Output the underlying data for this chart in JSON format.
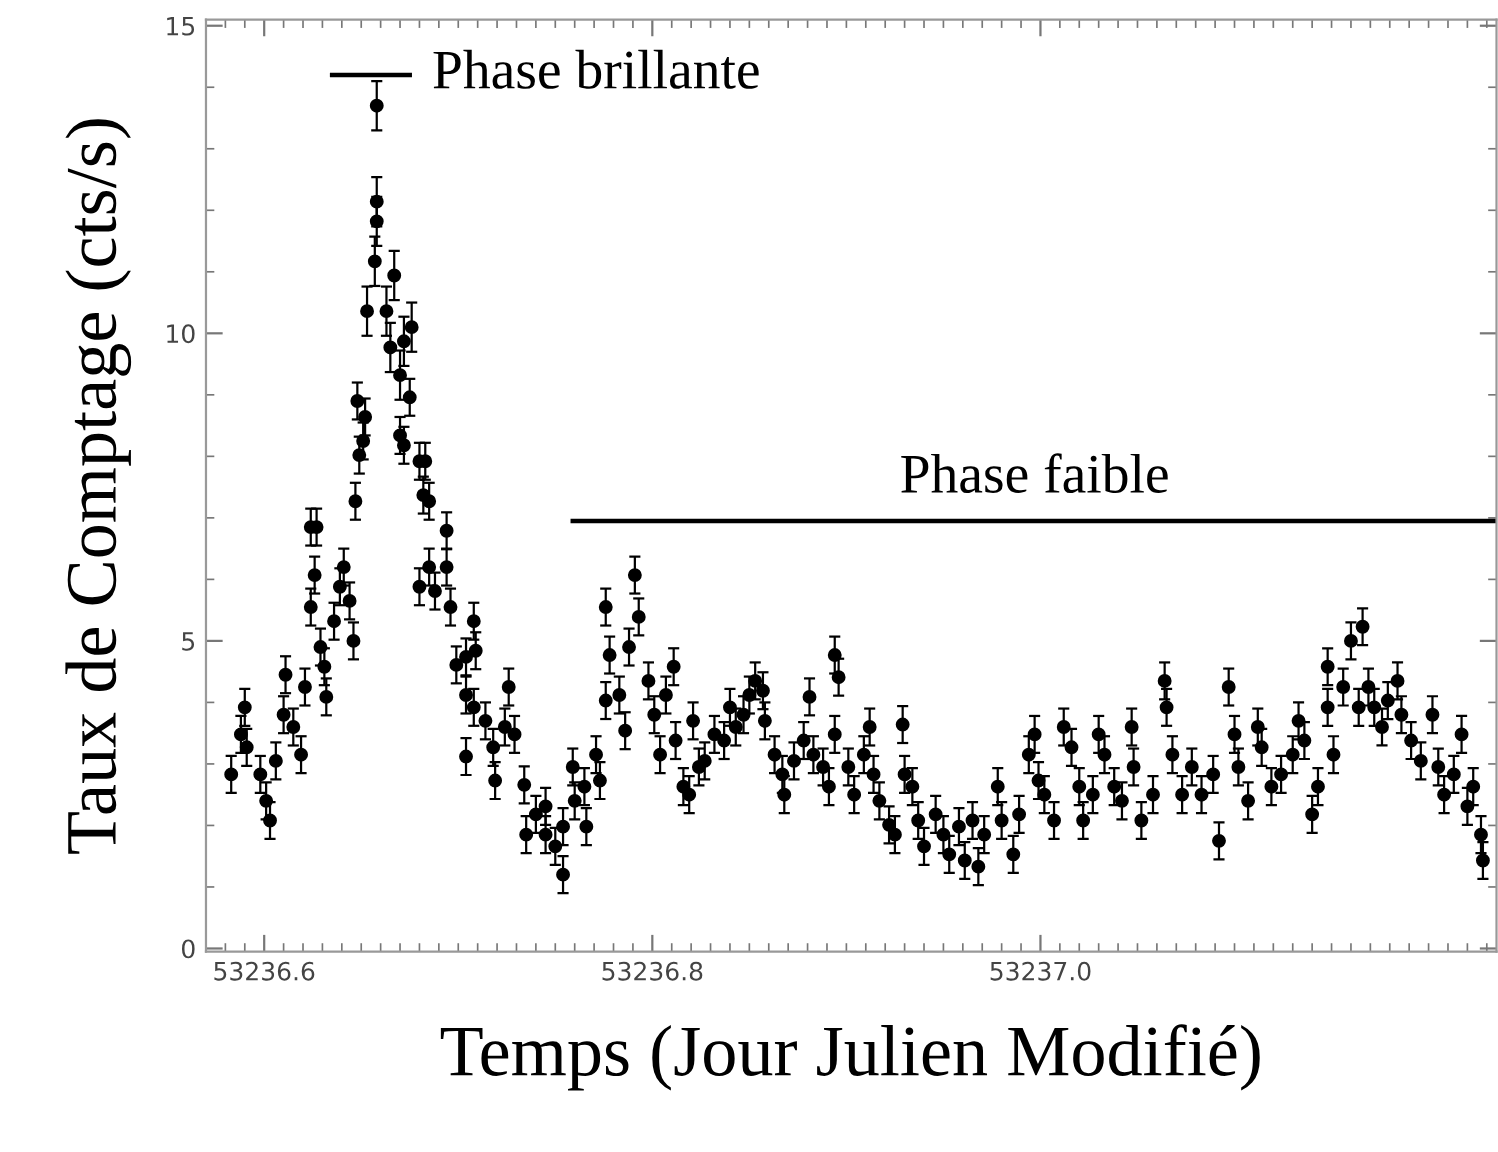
{
  "chart_data": {
    "type": "scatter",
    "xlabel": "Temps (Jour Julien Modifié)",
    "ylabel": "Taux de Comptage (cts/s)",
    "xlim": [
      53236.57,
      53237.235
    ],
    "xticks": [
      53236.6,
      53236.8,
      {
        "value": 53237.0,
        "label": "53237.0"
      }
    ],
    "ylim": [
      -0.05,
      15.1
    ],
    "yticks": [
      0,
      5,
      10,
      15
    ],
    "grid": false,
    "annotations": [
      "Phase brillante",
      "Phase faible"
    ],
    "series": [
      {
        "color": "#000000",
        "marker": "circle",
        "x": [
          53236.583,
          53236.588,
          53236.59,
          53236.591,
          53236.598,
          53236.601,
          53236.603,
          53236.606,
          53236.61,
          53236.611,
          53236.615,
          53236.619,
          53236.621,
          53236.624,
          53236.627,
          53236.624,
          53236.626,
          53236.629,
          53236.631,
          53236.632,
          53236.636,
          53236.639,
          53236.641,
          53236.644,
          53236.646,
          53236.647,
          53236.649,
          53236.648,
          53236.652,
          53236.651,
          53236.653,
          53236.657,
          53236.658,
          53236.658,
          53236.658,
          53236.663,
          53236.665,
          53236.667,
          53236.67,
          53236.672,
          53236.676,
          53236.675,
          53236.67,
          53236.672,
          53236.68,
          53236.683,
          53236.682,
          53236.685,
          53236.68,
          53236.685,
          53236.688,
          53236.694,
          53236.694,
          53236.696,
          53236.699,
          53236.704,
          53236.708,
          53236.709,
          53236.704,
          53236.708,
          53236.704,
          53236.714,
          53236.718,
          53236.719,
          53236.724,
          53236.726,
          53236.729,
          53236.734,
          53236.735,
          53236.74,
          53236.745,
          53236.745,
          53236.75,
          53236.754,
          53236.754,
          53236.759,
          53236.76,
          53236.765,
          53236.766,
          53236.771,
          53236.773,
          53236.776,
          53236.776,
          53236.778,
          53236.783,
          53236.788,
          53236.791,
          53236.786,
          53236.793,
          53236.798,
          53236.801,
          53236.804,
          53236.807,
          53236.811,
          53236.812,
          53236.816,
          53236.819,
          53236.821,
          53236.824,
          53236.827,
          53236.832,
          53236.837,
          53236.84,
          53236.843,
          53236.847,
          53236.85,
          53236.853,
          53236.857,
          53236.858,
          53236.863,
          53236.867,
          53236.868,
          53236.873,
          53236.878,
          53236.881,
          53236.883,
          53236.888,
          53236.891,
          53236.894,
          53236.896,
          53236.894,
          53236.901,
          53236.904,
          53236.909,
          53236.912,
          53236.914,
          53236.917,
          53236.922,
          53236.925,
          53236.929,
          53236.93,
          53236.934,
          53236.937,
          53236.94,
          53236.946,
          53236.95,
          53236.953,
          53236.958,
          53236.961,
          53236.965,
          53236.968,
          53236.971,
          53236.978,
          53236.98,
          53236.986,
          53236.989,
          53236.994,
          53236.997,
          53236.999,
          53237.002,
          53237.007,
          53237.012,
          53237.016,
          53237.02,
          53237.022,
          53237.027,
          53237.03,
          53237.033,
          53237.038,
          53237.042,
          53237.047,
          53237.048,
          53237.052,
          53237.058,
          53237.064,
          53237.065,
          53237.068,
          53237.073,
          53237.078,
          53237.083,
          53237.089,
          53237.092,
          53237.097,
          53237.1,
          53237.102,
          53237.107,
          53237.112,
          53237.114,
          53237.119,
          53237.124,
          53237.13,
          53237.133,
          53237.136,
          53237.14,
          53237.143,
          53237.148,
          53237.148,
          53237.151,
          53237.156,
          53237.16,
          53237.166,
          53237.164,
          53237.169,
          53237.172,
          53237.176,
          53237.179,
          53237.184,
          53237.186,
          53237.191,
          53237.196,
          53237.202,
          53237.205,
          53237.208,
          53237.213,
          53237.217,
          53237.22,
          53237.223,
          53237.227,
          53237.228
        ],
        "values": [
          2.83,
          3.48,
          3.92,
          3.27,
          2.83,
          2.4,
          2.08,
          3.05,
          3.8,
          4.45,
          3.6,
          3.15,
          4.25,
          6.85,
          6.85,
          5.55,
          6.07,
          4.9,
          4.58,
          4.09,
          5.32,
          5.88,
          6.2,
          5.65,
          5.0,
          7.27,
          8.02,
          8.9,
          8.64,
          8.25,
          10.36,
          11.17,
          11.82,
          12.14,
          13.7,
          10.36,
          9.77,
          10.94,
          9.32,
          9.87,
          10.1,
          8.96,
          8.34,
          8.18,
          7.92,
          7.92,
          7.37,
          7.27,
          5.88,
          6.2,
          5.81,
          6.79,
          6.2,
          5.55,
          4.61,
          4.74,
          5.32,
          4.84,
          4.12,
          3.92,
          3.12,
          3.7,
          3.27,
          2.73,
          3.6,
          4.25,
          3.48,
          2.66,
          1.85,
          2.18,
          2.31,
          1.85,
          1.66,
          1.2,
          1.98,
          2.95,
          2.4,
          2.63,
          1.98,
          3.15,
          2.73,
          5.55,
          4.03,
          4.77,
          4.12,
          4.9,
          6.07,
          3.54,
          5.39,
          4.35,
          3.8,
          3.15,
          4.12,
          4.58,
          3.38,
          2.63,
          2.5,
          3.7,
          2.95,
          3.05,
          3.48,
          3.38,
          3.92,
          3.6,
          3.8,
          4.12,
          4.35,
          4.19,
          3.7,
          3.15,
          2.83,
          2.5,
          3.05,
          3.38,
          4.09,
          3.15,
          2.95,
          2.63,
          4.77,
          4.41,
          3.48,
          2.95,
          2.5,
          3.15,
          3.6,
          2.83,
          2.4,
          2.01,
          1.85,
          3.64,
          2.83,
          2.63,
          2.08,
          1.66,
          2.18,
          1.85,
          1.53,
          1.98,
          1.43,
          2.08,
          1.33,
          1.85,
          2.63,
          2.08,
          1.53,
          2.18,
          3.15,
          3.48,
          2.73,
          2.5,
          2.08,
          3.6,
          3.27,
          2.63,
          2.08,
          2.5,
          3.48,
          3.15,
          2.63,
          2.4,
          3.6,
          2.95,
          2.08,
          2.5,
          4.35,
          3.92,
          3.15,
          2.5,
          2.95,
          2.5,
          2.83,
          1.75,
          4.25,
          3.48,
          2.95,
          2.4,
          3.6,
          3.27,
          2.63,
          2.83,
          3.15,
          3.7,
          3.38,
          2.18,
          2.63,
          4.58,
          3.92,
          3.15,
          4.25,
          5.0,
          5.23,
          3.92,
          4.25,
          3.92,
          3.6,
          4.03,
          4.35,
          3.8,
          3.38,
          3.05,
          3.8,
          2.95,
          2.5,
          2.83,
          3.48,
          2.31,
          2.63,
          1.85,
          1.43
        ],
        "errors": [
          0.3,
          0.3,
          0.3,
          0.3,
          0.3,
          0.3,
          0.3,
          0.3,
          0.3,
          0.3,
          0.3,
          0.3,
          0.3,
          0.3,
          0.3,
          0.3,
          0.3,
          0.3,
          0.3,
          0.3,
          0.3,
          0.3,
          0.3,
          0.3,
          0.3,
          0.3,
          0.3,
          0.3,
          0.3,
          0.3,
          0.4,
          0.4,
          0.4,
          0.4,
          0.4,
          0.4,
          0.4,
          0.4,
          0.4,
          0.4,
          0.4,
          0.3,
          0.3,
          0.3,
          0.3,
          0.3,
          0.3,
          0.3,
          0.3,
          0.3,
          0.3,
          0.3,
          0.3,
          0.3,
          0.3,
          0.3,
          0.3,
          0.3,
          0.3,
          0.3,
          0.3,
          0.3,
          0.3,
          0.3,
          0.3,
          0.3,
          0.3,
          0.3,
          0.3,
          0.3,
          0.3,
          0.3,
          0.3,
          0.3,
          0.3,
          0.3,
          0.3,
          0.3,
          0.3,
          0.3,
          0.3,
          0.3,
          0.3,
          0.3,
          0.3,
          0.3,
          0.3,
          0.3,
          0.3,
          0.3,
          0.3,
          0.3,
          0.3,
          0.3,
          0.3,
          0.3,
          0.3,
          0.3,
          0.3,
          0.3,
          0.3,
          0.3,
          0.3,
          0.3,
          0.3,
          0.3,
          0.3,
          0.3,
          0.3,
          0.3,
          0.3,
          0.3,
          0.3,
          0.3,
          0.3,
          0.3,
          0.3,
          0.3,
          0.3,
          0.3,
          0.3,
          0.3,
          0.3,
          0.3,
          0.3,
          0.3,
          0.3,
          0.3,
          0.3,
          0.3,
          0.3,
          0.3,
          0.3,
          0.3,
          0.3,
          0.3,
          0.3,
          0.3,
          0.3,
          0.3,
          0.3,
          0.3,
          0.3,
          0.3,
          0.3,
          0.3,
          0.3,
          0.3,
          0.3,
          0.3,
          0.3,
          0.3,
          0.3,
          0.3,
          0.3,
          0.3,
          0.3,
          0.3,
          0.3,
          0.3,
          0.3,
          0.3,
          0.3,
          0.3,
          0.3,
          0.3,
          0.3,
          0.3,
          0.3,
          0.3,
          0.3,
          0.3,
          0.3,
          0.3,
          0.3,
          0.3,
          0.3,
          0.3,
          0.3,
          0.3,
          0.3,
          0.3,
          0.3,
          0.3,
          0.3,
          0.3,
          0.3,
          0.3,
          0.3,
          0.3,
          0.3,
          0.3,
          0.3,
          0.3,
          0.3,
          0.3,
          0.3,
          0.3,
          0.3,
          0.3,
          0.3,
          0.3,
          0.3,
          0.3,
          0.3,
          0.3,
          0.3,
          0.3,
          0.3
        ]
      },
      {
        "type": "line",
        "color": "#000000",
        "x": [
          53236.635,
          53236.675
        ],
        "values": [
          14.2,
          14.2
        ]
      },
      {
        "type": "line",
        "color": "#000000",
        "x": [
          53236.759,
          53237.235
        ],
        "values": [
          6.95,
          6.95
        ]
      }
    ]
  }
}
